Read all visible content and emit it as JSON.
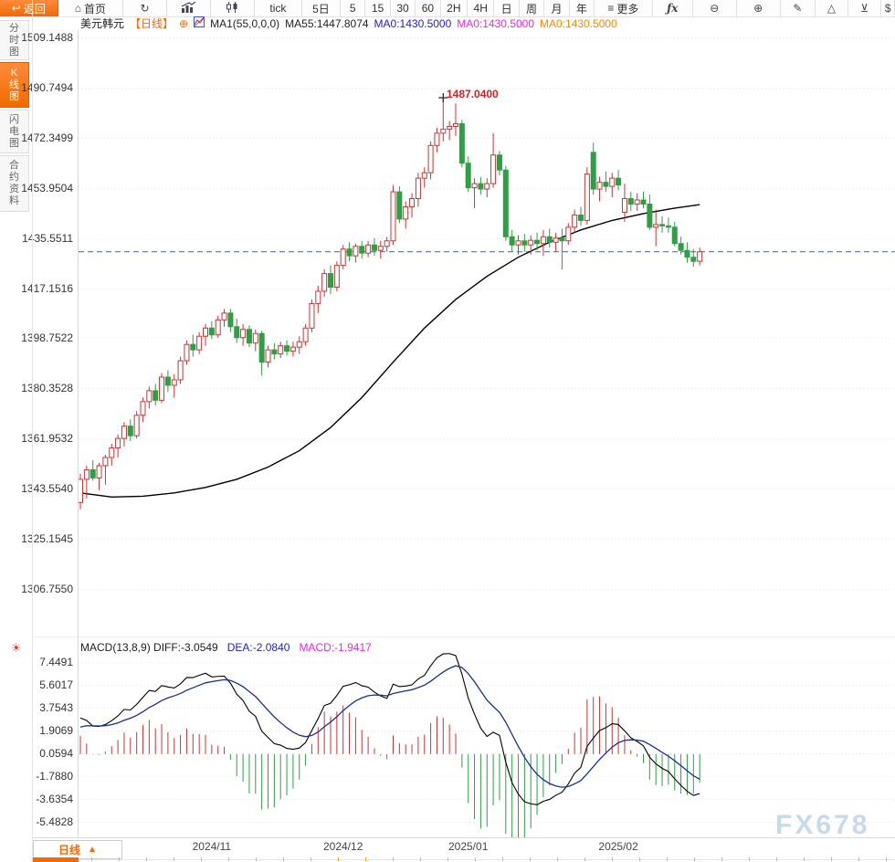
{
  "toolbar": {
    "items": [
      {
        "name": "back-button",
        "icon": "back-icon",
        "label": "返回",
        "primary": true
      },
      {
        "name": "home-button",
        "icon": "home-icon",
        "label": "首页"
      },
      {
        "name": "refresh-button",
        "icon": "refresh-icon",
        "label": ""
      },
      {
        "name": "bar-chart-button",
        "icon": "bar-chart-icon",
        "label": ""
      },
      {
        "name": "kline-chart-button",
        "icon": "kline-icon",
        "label": ""
      },
      {
        "name": "interval-tick",
        "label": "tick"
      },
      {
        "name": "interval-5d",
        "label": "5日"
      },
      {
        "name": "interval-5m",
        "label": "5"
      },
      {
        "name": "interval-15m",
        "label": "15"
      },
      {
        "name": "interval-30m",
        "label": "30"
      },
      {
        "name": "interval-60m",
        "label": "60"
      },
      {
        "name": "interval-2h",
        "label": "2H"
      },
      {
        "name": "interval-4h",
        "label": "4H"
      },
      {
        "name": "interval-day",
        "label": "日"
      },
      {
        "name": "interval-week",
        "label": "周"
      },
      {
        "name": "interval-month",
        "label": "月"
      },
      {
        "name": "interval-year",
        "label": "年"
      },
      {
        "name": "more-button",
        "icon": "menu-icon",
        "label": "更多"
      },
      {
        "name": "indicator-fx-button",
        "icon": "fx-icon",
        "label": ""
      },
      {
        "name": "zoom-out-button",
        "icon": "zoom-out-icon",
        "label": ""
      },
      {
        "name": "zoom-in-button",
        "icon": "zoom-in-icon",
        "label": ""
      },
      {
        "name": "draw-button",
        "icon": "draw-icon",
        "label": ""
      },
      {
        "name": "triangle-tool-button",
        "icon": "triangle-up-icon",
        "label": ""
      },
      {
        "name": "collapse-tool-button",
        "icon": "check-down-icon",
        "label": ""
      },
      {
        "name": "dollar-button",
        "icon": "dollar-icon",
        "label": ""
      }
    ]
  },
  "title_row": {
    "symbol": "美元韩元",
    "period_tag": "【日线】",
    "add_symbol": "⊕",
    "ma1": "MA1(55,0,0,0)",
    "ma55": "MA55:1447.8074",
    "ma0_blue": "MA0:1430.5000",
    "ma0_magenta": "MA0:1430.5000",
    "ma0_orange": "MA0:1430.5000"
  },
  "sidebar": {
    "tabs": [
      {
        "name": "tab-time-chart",
        "label": "分时图",
        "active": false
      },
      {
        "name": "tab-kline-chart",
        "label": "K线图",
        "active": true
      },
      {
        "name": "tab-flash-chart",
        "label": "闪电图",
        "active": false
      },
      {
        "name": "tab-contract-info",
        "label": "合约资料",
        "active": false
      }
    ]
  },
  "macd_header": {
    "left": "MACD(13,8,9) DIFF:-3.0549",
    "dea": "DEA:-2.0840",
    "macd": "MACD:-1.9417"
  },
  "icons": {
    "settings": "☀"
  },
  "bottom": {
    "period_label": "日线",
    "arrow": "▲"
  },
  "watermark": "FX678",
  "colors": {
    "accent": "#ff6600",
    "up": "#cc3333",
    "down": "#2f9e44",
    "ma55_line": "#000000",
    "diff_line": "#000000",
    "dea_line": "#1b2f8f",
    "last_price_line": "#2b7cff",
    "grid": "#e4e4e4",
    "annotation": "#cc2222",
    "watermark": "#c9d9ec"
  },
  "chart_data": {
    "type": "candlestick+macd",
    "symbol": "美元韩元",
    "period": "日线",
    "price_ticks": [
      "1509.1488",
      "1490.7494",
      "1472.3499",
      "1453.9504",
      "1435.5511",
      "1417.1516",
      "1398.7522",
      "1380.3528",
      "1361.9532",
      "1343.5540",
      "1325.1545",
      "1306.7550"
    ],
    "macd_ticks": [
      "7.4491",
      "5.6017",
      "3.7543",
      "1.9069",
      "0.0594",
      "-1.7880",
      "-3.6354",
      "-5.4828"
    ],
    "x_labels": [
      {
        "label": "2024/11",
        "index": 21
      },
      {
        "label": "2024/12",
        "index": 42
      },
      {
        "label": "2025/01",
        "index": 62
      },
      {
        "label": "2025/02",
        "index": 86
      }
    ],
    "axis": {
      "price_top": 1509.1488,
      "price_bottom": 1306.755,
      "macd_top": 7.4491,
      "macd_bottom": -5.4828
    },
    "last_price": 1430.5,
    "high_annotation": {
      "index": 58,
      "price": 1487.04,
      "label": "1487.0400"
    },
    "ma55_points": [
      [
        0,
        1342
      ],
      [
        5,
        1340.5
      ],
      [
        10,
        1340.8
      ],
      [
        15,
        1342
      ],
      [
        20,
        1344
      ],
      [
        25,
        1347
      ],
      [
        30,
        1351.5
      ],
      [
        35,
        1357.5
      ],
      [
        40,
        1366
      ],
      [
        45,
        1377
      ],
      [
        50,
        1390
      ],
      [
        55,
        1402.5
      ],
      [
        60,
        1413
      ],
      [
        65,
        1421.5
      ],
      [
        70,
        1428.5
      ],
      [
        75,
        1434
      ],
      [
        80,
        1438.5
      ],
      [
        85,
        1442
      ],
      [
        90,
        1444.5
      ],
      [
        95,
        1446.5
      ],
      [
        99,
        1447.8
      ]
    ],
    "macd_params": {
      "fast": 8,
      "slow": 13,
      "signal": 9,
      "seed": {
        "fast_offset": 1.0,
        "slow_offset": -2.5,
        "dea": 2.0
      }
    },
    "candles": [
      [
        1338.5,
        1349,
        1336,
        1347
      ],
      [
        1347,
        1352,
        1340,
        1350.5
      ],
      [
        1350.5,
        1354,
        1346.5,
        1347.5
      ],
      [
        1347.5,
        1353,
        1343,
        1352
      ],
      [
        1352,
        1356,
        1345,
        1355
      ],
      [
        1355,
        1360,
        1352,
        1358.5
      ],
      [
        1358.5,
        1363.5,
        1355,
        1362
      ],
      [
        1362,
        1368,
        1359,
        1366.5
      ],
      [
        1366.5,
        1369,
        1361,
        1363
      ],
      [
        1363,
        1372,
        1362,
        1370.5
      ],
      [
        1370.5,
        1377,
        1368,
        1375.5
      ],
      [
        1375.5,
        1381,
        1373,
        1379.5
      ],
      [
        1379.5,
        1382,
        1374,
        1376
      ],
      [
        1376,
        1386,
        1375,
        1384.5
      ],
      [
        1384.5,
        1387,
        1379,
        1381.5
      ],
      [
        1381.5,
        1385.5,
        1377,
        1383.5
      ],
      [
        1383.5,
        1392,
        1382,
        1390.5
      ],
      [
        1390.5,
        1398,
        1389,
        1396.5
      ],
      [
        1396.5,
        1400,
        1392,
        1394.5
      ],
      [
        1394.5,
        1401,
        1393,
        1399.5
      ],
      [
        1399.5,
        1404,
        1396,
        1402.5
      ],
      [
        1402.5,
        1405,
        1398.5,
        1400
      ],
      [
        1400,
        1407,
        1399,
        1405.5
      ],
      [
        1405.5,
        1409.5,
        1403,
        1408
      ],
      [
        1408,
        1409.5,
        1401,
        1403
      ],
      [
        1403,
        1406,
        1397,
        1399
      ],
      [
        1399,
        1404,
        1396,
        1402
      ],
      [
        1402,
        1403.5,
        1395.5,
        1397
      ],
      [
        1397,
        1402,
        1394,
        1400.5
      ],
      [
        1400.5,
        1401.5,
        1385,
        1390
      ],
      [
        1390,
        1396,
        1388,
        1394.5
      ],
      [
        1394.5,
        1397,
        1391,
        1393
      ],
      [
        1393,
        1397.5,
        1391.5,
        1396
      ],
      [
        1396,
        1398,
        1392.5,
        1394
      ],
      [
        1394,
        1397.5,
        1392,
        1395.5
      ],
      [
        1395.5,
        1399.5,
        1393,
        1397.5
      ],
      [
        1397.5,
        1404,
        1396,
        1402.5
      ],
      [
        1402.5,
        1413,
        1401,
        1411.5
      ],
      [
        1411.5,
        1418,
        1408,
        1416
      ],
      [
        1416,
        1424,
        1414,
        1422.5
      ],
      [
        1422.5,
        1425.5,
        1415,
        1417.5
      ],
      [
        1417.5,
        1427,
        1416,
        1425.5
      ],
      [
        1425.5,
        1433,
        1424,
        1431.5
      ],
      [
        1431.5,
        1434,
        1427,
        1429
      ],
      [
        1429,
        1433.5,
        1426.5,
        1432.5
      ],
      [
        1432.5,
        1434.5,
        1428,
        1430
      ],
      [
        1430,
        1434.5,
        1428.5,
        1433
      ],
      [
        1433,
        1435.5,
        1429,
        1431
      ],
      [
        1431,
        1434.5,
        1428,
        1432.5
      ],
      [
        1432.5,
        1436,
        1430.5,
        1434.5
      ],
      [
        1434.5,
        1455,
        1433,
        1452.5
      ],
      [
        1452.5,
        1454.5,
        1441,
        1442.5
      ],
      [
        1442.5,
        1449,
        1439,
        1447
      ],
      [
        1447,
        1452,
        1443,
        1450
      ],
      [
        1450,
        1459.5,
        1447,
        1457.5
      ],
      [
        1457.5,
        1461.5,
        1454,
        1459.5
      ],
      [
        1459.5,
        1471,
        1457,
        1469.5
      ],
      [
        1469.5,
        1476,
        1467,
        1474
      ],
      [
        1474,
        1487,
        1471,
        1475.5
      ],
      [
        1475.5,
        1478.5,
        1471.5,
        1476.5
      ],
      [
        1476.5,
        1485,
        1473,
        1477.5
      ],
      [
        1477.5,
        1479,
        1461.5,
        1463
      ],
      [
        1463,
        1465.5,
        1452.5,
        1454
      ],
      [
        1454,
        1457.5,
        1446.5,
        1455.5
      ],
      [
        1455.5,
        1458,
        1451.5,
        1453.5
      ],
      [
        1453.5,
        1457.5,
        1450.5,
        1455.5
      ],
      [
        1455.5,
        1474,
        1454,
        1466
      ],
      [
        1466,
        1467.5,
        1458.5,
        1460.5
      ],
      [
        1460.5,
        1462,
        1434.5,
        1436
      ],
      [
        1436,
        1438.5,
        1430.5,
        1433
      ],
      [
        1433,
        1436.5,
        1429.5,
        1434.5
      ],
      [
        1434.5,
        1437,
        1430.5,
        1433
      ],
      [
        1433,
        1436.5,
        1429.5,
        1434.7
      ],
      [
        1434.7,
        1437.5,
        1431,
        1433.5
      ],
      [
        1433.5,
        1438.5,
        1429,
        1436
      ],
      [
        1436,
        1439,
        1432,
        1434
      ],
      [
        1434,
        1437.5,
        1430.5,
        1435.5
      ],
      [
        1435.5,
        1439,
        1424,
        1434.5
      ],
      [
        1434.5,
        1441,
        1433,
        1439.5
      ],
      [
        1439.5,
        1446,
        1437.5,
        1444
      ],
      [
        1444,
        1447,
        1440,
        1442
      ],
      [
        1442,
        1461.5,
        1440.5,
        1459
      ],
      [
        1467,
        1470.5,
        1451.5,
        1453.5
      ],
      [
        1453.5,
        1458,
        1449,
        1456
      ],
      [
        1456,
        1460,
        1452.5,
        1454.5
      ],
      [
        1454.5,
        1459.5,
        1450.5,
        1457.5
      ],
      [
        1457.5,
        1460.5,
        1453,
        1455
      ],
      [
        1445,
        1455.5,
        1441.5,
        1450
      ],
      [
        1450,
        1452.5,
        1445.5,
        1448
      ],
      [
        1448,
        1452,
        1445.5,
        1449.5
      ],
      [
        1449.5,
        1452.5,
        1446.5,
        1448
      ],
      [
        1448,
        1451.5,
        1438.5,
        1439.5
      ],
      [
        1439.5,
        1446,
        1432.5,
        1440.5
      ],
      [
        1440.5,
        1443.5,
        1437.5,
        1440
      ],
      [
        1440,
        1443,
        1437.5,
        1439.5
      ],
      [
        1439.5,
        1441.5,
        1432.5,
        1433.5
      ],
      [
        1433.5,
        1436,
        1429.5,
        1431
      ],
      [
        1431,
        1434,
        1426.5,
        1428.5
      ],
      [
        1428.5,
        1431.5,
        1425,
        1427
      ],
      [
        1427,
        1432,
        1425.5,
        1430.5
      ]
    ]
  }
}
